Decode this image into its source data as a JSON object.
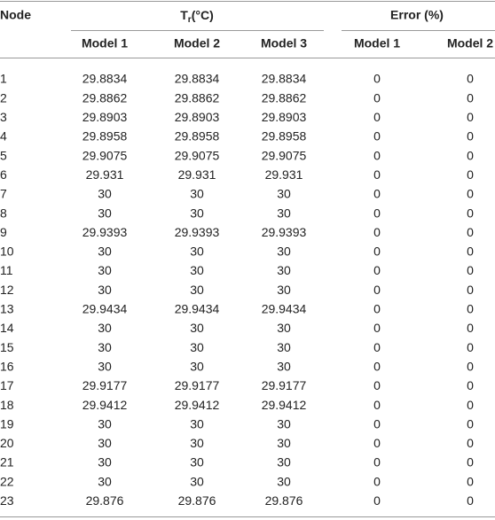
{
  "table": {
    "header": {
      "node": "Node",
      "tr_symbol": "T",
      "tr_subscript": "r",
      "tr_unit": "(°C)",
      "error": "Error (%)",
      "subheaders": [
        "Model 1",
        "Model 2",
        "Model 3",
        "Model 1",
        "Model 2"
      ]
    },
    "rows": [
      [
        "1",
        "29.8834",
        "29.8834",
        "29.8834",
        "0",
        "0"
      ],
      [
        "2",
        "29.8862",
        "29.8862",
        "29.8862",
        "0",
        "0"
      ],
      [
        "3",
        "29.8903",
        "29.8903",
        "29.8903",
        "0",
        "0"
      ],
      [
        "4",
        "29.8958",
        "29.8958",
        "29.8958",
        "0",
        "0"
      ],
      [
        "5",
        "29.9075",
        "29.9075",
        "29.9075",
        "0",
        "0"
      ],
      [
        "6",
        "29.931",
        "29.931",
        "29.931",
        "0",
        "0"
      ],
      [
        "7",
        "30",
        "30",
        "30",
        "0",
        "0"
      ],
      [
        "8",
        "30",
        "30",
        "30",
        "0",
        "0"
      ],
      [
        "9",
        "29.9393",
        "29.9393",
        "29.9393",
        "0",
        "0"
      ],
      [
        "10",
        "30",
        "30",
        "30",
        "0",
        "0"
      ],
      [
        "11",
        "30",
        "30",
        "30",
        "0",
        "0"
      ],
      [
        "12",
        "30",
        "30",
        "30",
        "0",
        "0"
      ],
      [
        "13",
        "29.9434",
        "29.9434",
        "29.9434",
        "0",
        "0"
      ],
      [
        "14",
        "30",
        "30",
        "30",
        "0",
        "0"
      ],
      [
        "15",
        "30",
        "30",
        "30",
        "0",
        "0"
      ],
      [
        "16",
        "30",
        "30",
        "30",
        "0",
        "0"
      ],
      [
        "17",
        "29.9177",
        "29.9177",
        "29.9177",
        "0",
        "0"
      ],
      [
        "18",
        "29.9412",
        "29.9412",
        "29.9412",
        "0",
        "0"
      ],
      [
        "19",
        "30",
        "30",
        "30",
        "0",
        "0"
      ],
      [
        "20",
        "30",
        "30",
        "30",
        "0",
        "0"
      ],
      [
        "21",
        "30",
        "30",
        "30",
        "0",
        "0"
      ],
      [
        "22",
        "30",
        "30",
        "30",
        "0",
        "0"
      ],
      [
        "23",
        "29.876",
        "29.876",
        "29.876",
        "0",
        "0"
      ]
    ]
  }
}
